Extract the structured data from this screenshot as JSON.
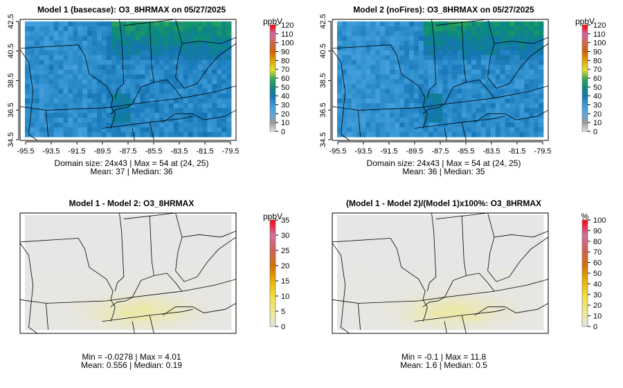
{
  "chart_data": [
    {
      "type": "heatmap",
      "title": "Model 1 (basecase): O3_8HRMAX on 05/27/2025",
      "unit": "ppbV",
      "xticks": [
        "-95.5",
        "-93.5",
        "-91.5",
        "-89.5",
        "-87.5",
        "-85.5",
        "-83.5",
        "-81.5",
        "-79.5"
      ],
      "yticks": [
        "34.5",
        "36.5",
        "38.5",
        "40.5",
        "42.5"
      ],
      "xlim": [
        -95.5,
        -79.5
      ],
      "ylim": [
        34.5,
        42.5
      ],
      "colorbar_ticks": [
        "0",
        "10",
        "20",
        "30",
        "40",
        "50",
        "60",
        "70",
        "80",
        "90",
        "100",
        "110",
        "120"
      ],
      "crange": [
        0,
        120
      ],
      "palette": "ozone",
      "stats": [
        "Domain size: 24x43 | Max = 54 at (24, 25)",
        "Mean: 37 |  Median: 36"
      ],
      "grid": {
        "rows": 24,
        "cols": 43,
        "mean": 37,
        "max": 54
      }
    },
    {
      "type": "heatmap",
      "title": "Model 2 (noFires): O3_8HRMAX on 05/27/2025",
      "unit": "ppbV",
      "xticks": [
        "-95.5",
        "-93.5",
        "-91.5",
        "-89.5",
        "-87.5",
        "-85.5",
        "-83.5",
        "-81.5",
        "-79.5"
      ],
      "yticks": [
        "34.5",
        "36.5",
        "38.5",
        "40.5",
        "42.5"
      ],
      "xlim": [
        -95.5,
        -79.5
      ],
      "ylim": [
        34.5,
        42.5
      ],
      "colorbar_ticks": [
        "0",
        "10",
        "20",
        "30",
        "40",
        "50",
        "60",
        "70",
        "80",
        "90",
        "100",
        "110",
        "120"
      ],
      "crange": [
        0,
        120
      ],
      "palette": "ozone",
      "stats": [
        "Domain size: 24x43 | Max = 54 at (24, 25)",
        "Mean: 36 |  Median: 35"
      ],
      "grid": {
        "rows": 24,
        "cols": 43,
        "mean": 36,
        "max": 54
      }
    },
    {
      "type": "heatmap",
      "title": "Model 1 - Model 2: O3_8HRMAX",
      "unit": "ppbV",
      "xticks": [],
      "yticks": [],
      "colorbar_ticks": [
        "0",
        "5",
        "10",
        "15",
        "20",
        "25",
        "30",
        "35"
      ],
      "crange": [
        0,
        35
      ],
      "palette": "diff",
      "stats": [
        "Min = -0.0278 | Max = 4.01",
        "Mean: 0.556 |  Median: 0.19"
      ],
      "grid": {
        "rows": 24,
        "cols": 43,
        "mean": 0.556,
        "max": 4.01
      }
    },
    {
      "type": "heatmap",
      "title": "(Model 1 - Model 2)/(Model 1)x100%: O3_8HRMAX",
      "unit": "%",
      "xticks": [],
      "yticks": [],
      "colorbar_ticks": [
        "0",
        "10",
        "20",
        "30",
        "40",
        "50",
        "60",
        "70",
        "80",
        "90",
        "100"
      ],
      "crange": [
        0,
        100
      ],
      "palette": "diff",
      "stats": [
        "Min = -0.1 | Max = 11.8",
        "Mean: 1.6 |  Median: 0.5"
      ],
      "grid": {
        "rows": 24,
        "cols": 43,
        "mean": 1.6,
        "max": 11.8
      }
    }
  ]
}
